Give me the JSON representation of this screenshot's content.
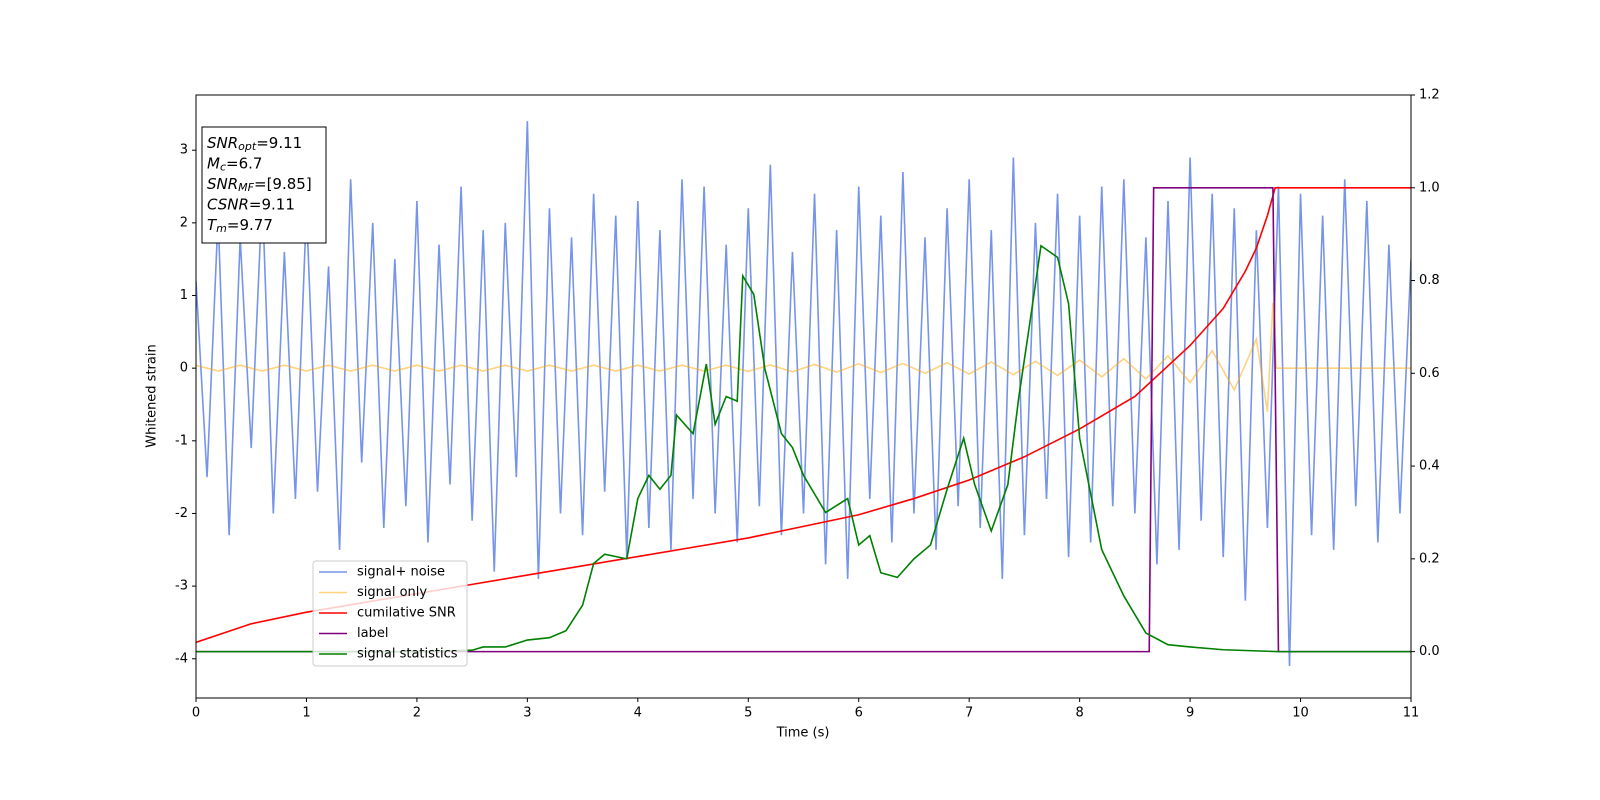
{
  "chart_data": {
    "type": "line",
    "xlabel": "Time (s)",
    "ylabel": "Whitened strain",
    "xlim": [
      0,
      11
    ],
    "ylim": [
      -4.54,
      3.76
    ],
    "y2lim": [
      -0.1,
      1.2
    ],
    "xticks": [
      0,
      1,
      2,
      3,
      4,
      5,
      6,
      7,
      8,
      9,
      10,
      11
    ],
    "yticks": [
      -4,
      -3,
      -2,
      -1,
      0,
      1,
      2,
      3
    ],
    "y2ticks": [
      {
        "value": 0,
        "label": "0.0"
      },
      0.2,
      0.4,
      0.6,
      0.8,
      {
        "value": 1,
        "label": "1.0"
      },
      1.2
    ],
    "grid": false,
    "legend": "lower left",
    "annotations": [
      {
        "base": "SNR",
        "sub": "opt",
        "rest": "=9.11"
      },
      {
        "base": "M",
        "sub": "c",
        "rest": "=6.7"
      },
      {
        "base": "SNR",
        "sub": "MF",
        "rest": "=[9.85]"
      },
      {
        "base": "CSNR",
        "rest": "=9.11"
      },
      {
        "base": "T",
        "sub": "m",
        "rest": "=9.77"
      }
    ],
    "series": [
      {
        "name": "signal+ noise",
        "color": "#6f8ee8",
        "opacity": 0.95,
        "x": [
          0,
          0.1,
          0.2,
          0.3,
          0.4,
          0.5,
          0.6,
          0.7,
          0.8,
          0.9,
          1,
          1.1,
          1.2,
          1.3,
          1.4,
          1.5,
          1.6,
          1.7,
          1.8,
          1.9,
          2,
          2.1,
          2.2,
          2.3,
          2.4,
          2.5,
          2.6,
          2.7,
          2.8,
          2.9,
          3,
          3.1,
          3.2,
          3.3,
          3.4,
          3.5,
          3.6,
          3.7,
          3.8,
          3.9,
          4,
          4.1,
          4.2,
          4.3,
          4.4,
          4.5,
          4.6,
          4.7,
          4.8,
          4.9,
          5,
          5.1,
          5.2,
          5.3,
          5.4,
          5.5,
          5.6,
          5.7,
          5.8,
          5.9,
          6,
          6.1,
          6.2,
          6.3,
          6.4,
          6.5,
          6.6,
          6.7,
          6.8,
          6.9,
          7,
          7.1,
          7.2,
          7.3,
          7.4,
          7.5,
          7.6,
          7.7,
          7.8,
          7.9,
          8,
          8.1,
          8.2,
          8.3,
          8.4,
          8.5,
          8.6,
          8.7,
          8.8,
          8.9,
          9,
          9.1,
          9.2,
          9.3,
          9.4,
          9.5,
          9.6,
          9.7,
          9.8,
          9.9,
          10,
          10.1,
          10.2,
          10.3,
          10.4,
          10.5,
          10.6,
          10.7,
          10.8,
          10.9,
          11
        ],
        "values": [
          1.2,
          -1.5,
          2.1,
          -2.3,
          1.8,
          -1.1,
          2.4,
          -2.0,
          1.6,
          -1.8,
          2.2,
          -1.7,
          1.4,
          -2.5,
          2.6,
          -1.3,
          2.0,
          -2.2,
          1.5,
          -1.9,
          2.3,
          -2.4,
          1.7,
          -1.6,
          2.5,
          -2.1,
          1.9,
          -2.8,
          2.0,
          -1.5,
          3.4,
          -2.9,
          2.2,
          -2.0,
          1.8,
          -2.3,
          2.4,
          -1.7,
          2.1,
          -2.6,
          2.3,
          -2.2,
          1.9,
          -2.5,
          2.6,
          -1.8,
          2.5,
          -2.0,
          1.7,
          -2.4,
          2.2,
          -1.9,
          2.8,
          -2.3,
          1.6,
          -2.0,
          2.4,
          -2.7,
          1.9,
          -2.9,
          2.5,
          -1.8,
          2.1,
          -2.4,
          2.7,
          -2.0,
          1.8,
          -2.5,
          2.2,
          -1.9,
          2.6,
          -2.2,
          1.9,
          -2.9,
          2.9,
          -2.3,
          2.0,
          -1.8,
          2.4,
          -2.6,
          2.1,
          -2.4,
          2.5,
          -1.9,
          2.6,
          -2.0,
          1.8,
          -2.7,
          2.3,
          -2.5,
          2.9,
          -2.1,
          2.4,
          -2.6,
          2.2,
          -3.2,
          1.9,
          -2.2,
          2.5,
          -4.1,
          2.4,
          -2.3,
          2.1,
          -2.5,
          2.6,
          -1.9,
          2.3,
          -2.4,
          1.7,
          -2.0,
          1.5
        ]
      },
      {
        "name": "signal only",
        "color": "orange",
        "opacity": 0.5,
        "x": [
          0,
          0.2,
          0.4,
          0.6,
          0.8,
          1,
          1.2,
          1.4,
          1.6,
          1.8,
          2,
          2.2,
          2.4,
          2.6,
          2.8,
          3,
          3.2,
          3.4,
          3.6,
          3.8,
          4,
          4.2,
          4.4,
          4.6,
          4.8,
          5,
          5.2,
          5.4,
          5.6,
          5.8,
          6,
          6.2,
          6.4,
          6.6,
          6.8,
          7,
          7.2,
          7.4,
          7.6,
          7.8,
          8,
          8.2,
          8.4,
          8.6,
          8.8,
          9,
          9.2,
          9.4,
          9.6,
          9.7,
          9.75,
          9.78,
          11
        ],
        "values": [
          0.04,
          -0.04,
          0.04,
          -0.04,
          0.04,
          -0.04,
          0.04,
          -0.04,
          0.04,
          -0.04,
          0.04,
          -0.04,
          0.04,
          -0.04,
          0.04,
          -0.04,
          0.04,
          -0.04,
          0.04,
          -0.04,
          0.04,
          -0.04,
          0.04,
          -0.04,
          0.04,
          -0.045,
          0.045,
          -0.05,
          0.05,
          -0.055,
          0.06,
          -0.06,
          0.065,
          -0.07,
          0.075,
          -0.08,
          0.085,
          -0.09,
          0.095,
          -0.1,
          0.11,
          -0.12,
          0.13,
          -0.15,
          0.17,
          -0.2,
          0.24,
          -0.3,
          0.4,
          -0.6,
          0.9,
          0,
          0
        ]
      },
      {
        "name": "cumilative SNR",
        "color": "red",
        "axis": "y2",
        "x": [
          0,
          0.5,
          1,
          1.5,
          2,
          2.5,
          3,
          3.5,
          4,
          4.5,
          5,
          5.5,
          6,
          6.5,
          7,
          7.5,
          8,
          8.5,
          9,
          9.3,
          9.5,
          9.6,
          9.7,
          9.77,
          11
        ],
        "values": [
          0.02,
          0.06,
          0.085,
          0.105,
          0.125,
          0.145,
          0.165,
          0.185,
          0.205,
          0.225,
          0.245,
          0.27,
          0.295,
          0.33,
          0.37,
          0.42,
          0.48,
          0.55,
          0.66,
          0.74,
          0.82,
          0.87,
          0.94,
          1.0,
          1.0
        ]
      },
      {
        "name": "label",
        "color": "purple",
        "axis": "y2",
        "x": [
          0,
          8.63,
          8.67,
          9.75,
          9.8,
          11
        ],
        "values": [
          0,
          0,
          1,
          1,
          0,
          0
        ]
      },
      {
        "name": "signal statistics",
        "color": "green",
        "axis": "y2",
        "x": [
          0,
          2,
          2.5,
          2.6,
          2.8,
          3.0,
          3.2,
          3.35,
          3.5,
          3.6,
          3.7,
          3.9,
          4.0,
          4.1,
          4.2,
          4.3,
          4.35,
          4.5,
          4.62,
          4.7,
          4.8,
          4.9,
          4.95,
          5.05,
          5.15,
          5.3,
          5.4,
          5.5,
          5.7,
          5.9,
          6.0,
          6.1,
          6.2,
          6.35,
          6.5,
          6.65,
          6.8,
          6.95,
          7.05,
          7.2,
          7.35,
          7.45,
          7.55,
          7.65,
          7.8,
          7.9,
          8.0,
          8.2,
          8.4,
          8.6,
          8.8,
          9.0,
          9.3,
          9.8,
          11
        ],
        "values": [
          0,
          0,
          0.003,
          0.01,
          0.01,
          0.025,
          0.03,
          0.045,
          0.1,
          0.19,
          0.21,
          0.2,
          0.33,
          0.38,
          0.35,
          0.38,
          0.51,
          0.47,
          0.62,
          0.49,
          0.55,
          0.54,
          0.81,
          0.77,
          0.61,
          0.47,
          0.44,
          0.38,
          0.3,
          0.33,
          0.23,
          0.25,
          0.17,
          0.16,
          0.2,
          0.23,
          0.35,
          0.46,
          0.36,
          0.26,
          0.36,
          0.55,
          0.71,
          0.875,
          0.85,
          0.75,
          0.46,
          0.22,
          0.12,
          0.04,
          0.015,
          0.01,
          0.004,
          0,
          0
        ]
      }
    ]
  }
}
